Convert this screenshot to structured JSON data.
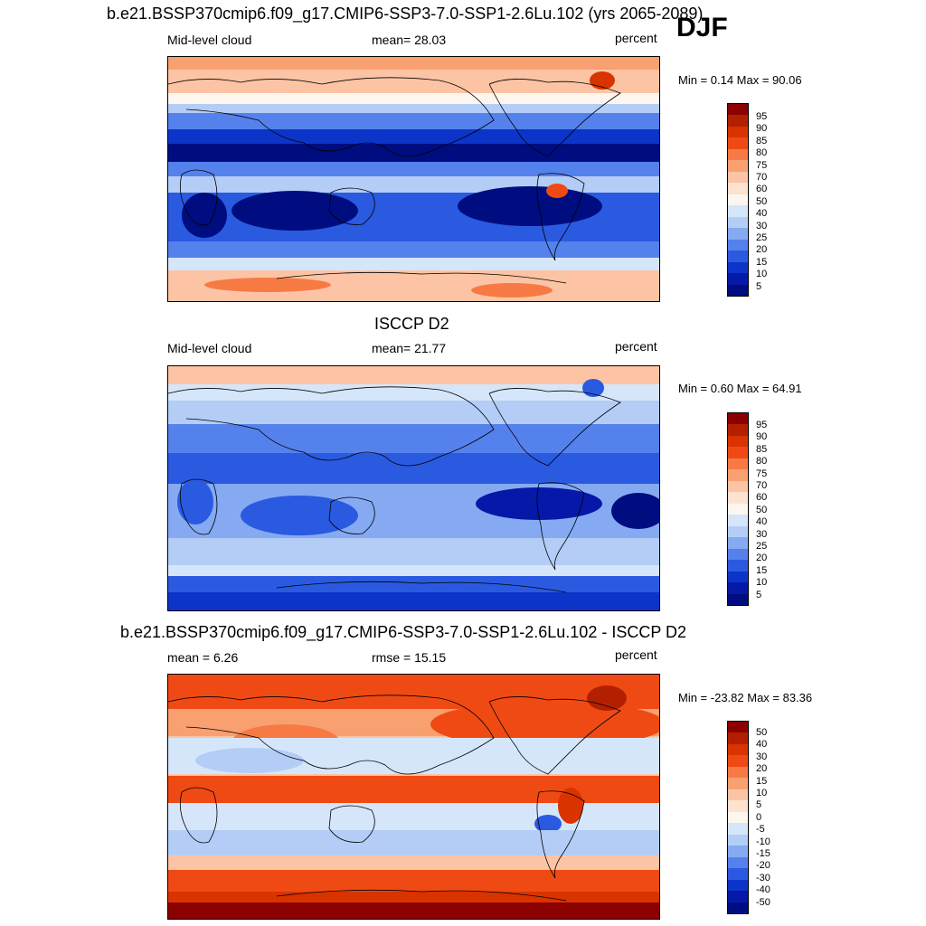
{
  "season": "DJF",
  "units": "percent",
  "panels": [
    {
      "title": "b.e21.BSSP370cmip6.f09_g17.CMIP6-SSP3-7.0-SSP1-2.6Lu.102 (yrs 2065-2089)",
      "left_label": "Mid-level cloud",
      "stat_label": "mean=  28.03",
      "units": "percent",
      "minmax": "Min =   0.14 Max =  90.06",
      "colorbar_labels": [
        "95",
        "90",
        "85",
        "80",
        "75",
        "70",
        "60",
        "50",
        "40",
        "30",
        "25",
        "20",
        "15",
        "10",
        "5"
      ],
      "colorbar_colors": [
        "#8b0000",
        "#b22000",
        "#d93300",
        "#f04a14",
        "#f77a45",
        "#f9a070",
        "#fcc4a4",
        "#fde2cf",
        "#fdf6ef",
        "#d6e6fa",
        "#b3cdf7",
        "#85aaf2",
        "#5581ec",
        "#2a5ae0",
        "#0c34c9",
        "#0618a8",
        "#000d80"
      ]
    },
    {
      "title": "ISCCP D2",
      "left_label": "Mid-level cloud",
      "stat_label": "mean=  21.77",
      "units": "percent",
      "minmax": "Min =   0.60 Max =  64.91",
      "colorbar_labels": [
        "95",
        "90",
        "85",
        "80",
        "75",
        "70",
        "60",
        "50",
        "40",
        "30",
        "25",
        "20",
        "15",
        "10",
        "5"
      ],
      "colorbar_colors": [
        "#8b0000",
        "#b22000",
        "#d93300",
        "#f04a14",
        "#f77a45",
        "#f9a070",
        "#fcc4a4",
        "#fde2cf",
        "#fdf6ef",
        "#d6e6fa",
        "#b3cdf7",
        "#85aaf2",
        "#5581ec",
        "#2a5ae0",
        "#0c34c9",
        "#0618a8",
        "#000d80"
      ]
    },
    {
      "title": "b.e21.BSSP370cmip6.f09_g17.CMIP6-SSP3-7.0-SSP1-2.6Lu.102 - ISCCP D2",
      "left_label": "mean =   6.26",
      "stat_label": "rmse =  15.15",
      "units": "percent",
      "minmax": "Min = -23.82 Max =  83.36",
      "colorbar_labels": [
        "50",
        "40",
        "30",
        "20",
        "15",
        "10",
        "5",
        "0",
        "-5",
        "-10",
        "-15",
        "-20",
        "-30",
        "-40",
        "-50"
      ],
      "colorbar_colors": [
        "#8b0000",
        "#b22000",
        "#d93300",
        "#f04a14",
        "#f77a45",
        "#f9a070",
        "#fcc4a4",
        "#fde2cf",
        "#fdf6ef",
        "#d6e6fa",
        "#b3cdf7",
        "#85aaf2",
        "#5581ec",
        "#2a5ae0",
        "#0c34c9",
        "#0618a8",
        "#000d80"
      ]
    }
  ]
}
